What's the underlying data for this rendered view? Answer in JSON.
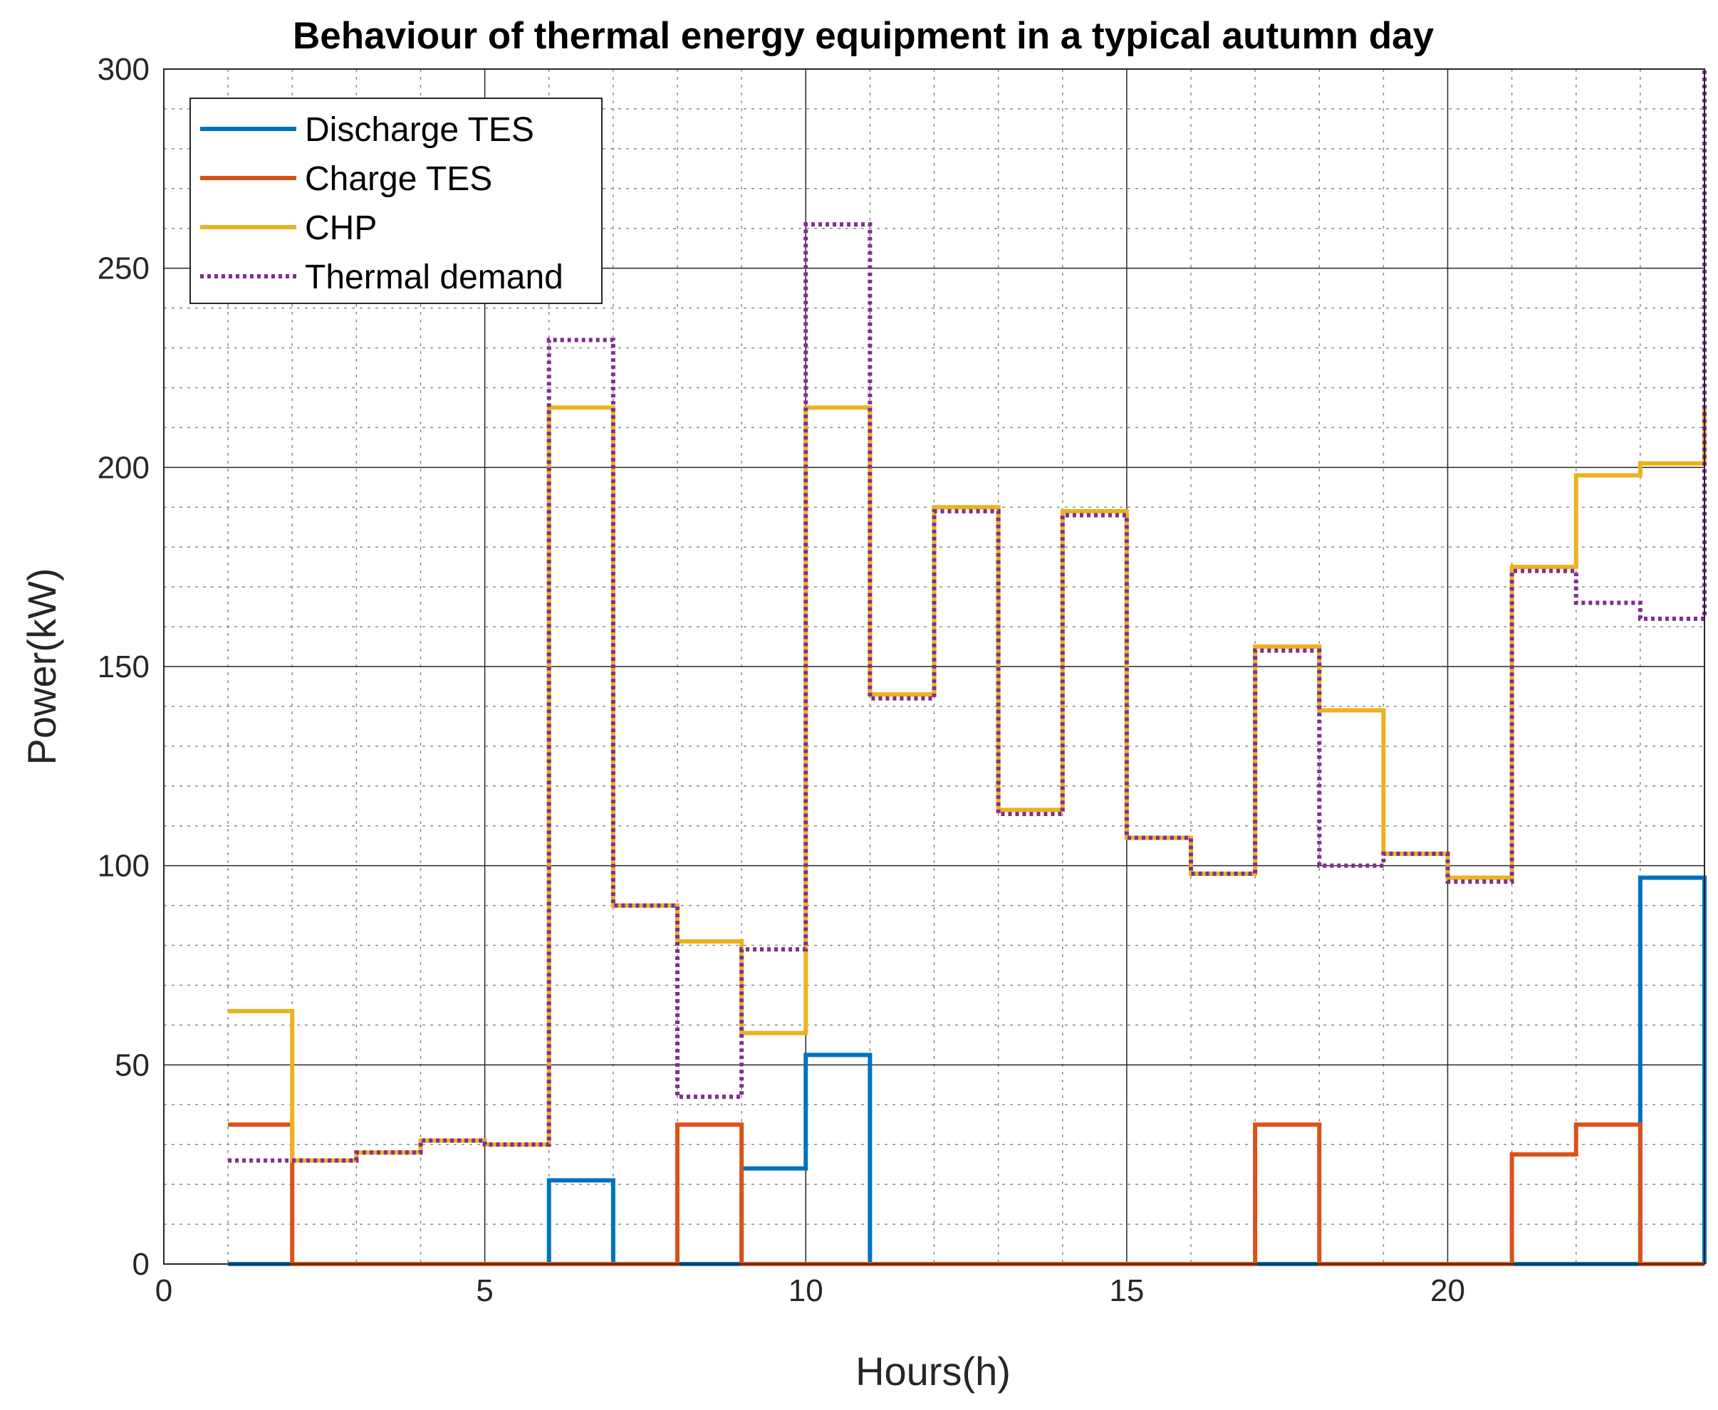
{
  "chart_data": {
    "type": "line",
    "step": "post",
    "title": "Behaviour of thermal energy equipment in a typical autumn day",
    "xlabel": "Hours(h)",
    "ylabel": "Power(kW)",
    "xlim": [
      0,
      24
    ],
    "ylim": [
      0,
      300
    ],
    "xticks": [
      0,
      5,
      10,
      15,
      20
    ],
    "yticks": [
      0,
      50,
      100,
      150,
      200,
      250,
      300
    ],
    "minor_x_step": 1,
    "minor_y_step": 10,
    "grid": true,
    "legend_position": "top-left",
    "x": [
      1,
      2,
      3,
      4,
      5,
      6,
      7,
      8,
      9,
      10,
      11,
      12,
      13,
      14,
      15,
      16,
      17,
      18,
      19,
      20,
      21,
      22,
      23,
      24
    ],
    "series": [
      {
        "name": "Discharge TES",
        "color": "#0072BD",
        "style": "solid",
        "values": [
          0,
          0,
          0,
          0,
          0,
          21,
          0,
          0,
          24,
          52.5,
          0,
          0,
          0,
          0,
          0,
          0,
          0,
          0,
          0,
          0,
          0,
          0,
          97,
          0
        ]
      },
      {
        "name": "Charge TES",
        "color": "#D95319",
        "style": "solid",
        "values": [
          35,
          0,
          0,
          0,
          0,
          0,
          0,
          35,
          0,
          0,
          0,
          0,
          0,
          0,
          0,
          0,
          35,
          0,
          0,
          0,
          27.5,
          35,
          0,
          0
        ]
      },
      {
        "name": "CHP",
        "color": "#EDB120",
        "style": "solid",
        "values": [
          63.5,
          26,
          28,
          31,
          30,
          215,
          90,
          81,
          58,
          215,
          143,
          190,
          114,
          189,
          107,
          98,
          155,
          139,
          103,
          97,
          175,
          198,
          201,
          215
        ]
      },
      {
        "name": "Thermal demand",
        "color": "#7E2F8E",
        "style": "dotted",
        "values": [
          26,
          26,
          28,
          31,
          30,
          232,
          90,
          42,
          79,
          261,
          142,
          189,
          113,
          188,
          107,
          98,
          154,
          100,
          103,
          96,
          174,
          166,
          162,
          300
        ]
      }
    ]
  }
}
